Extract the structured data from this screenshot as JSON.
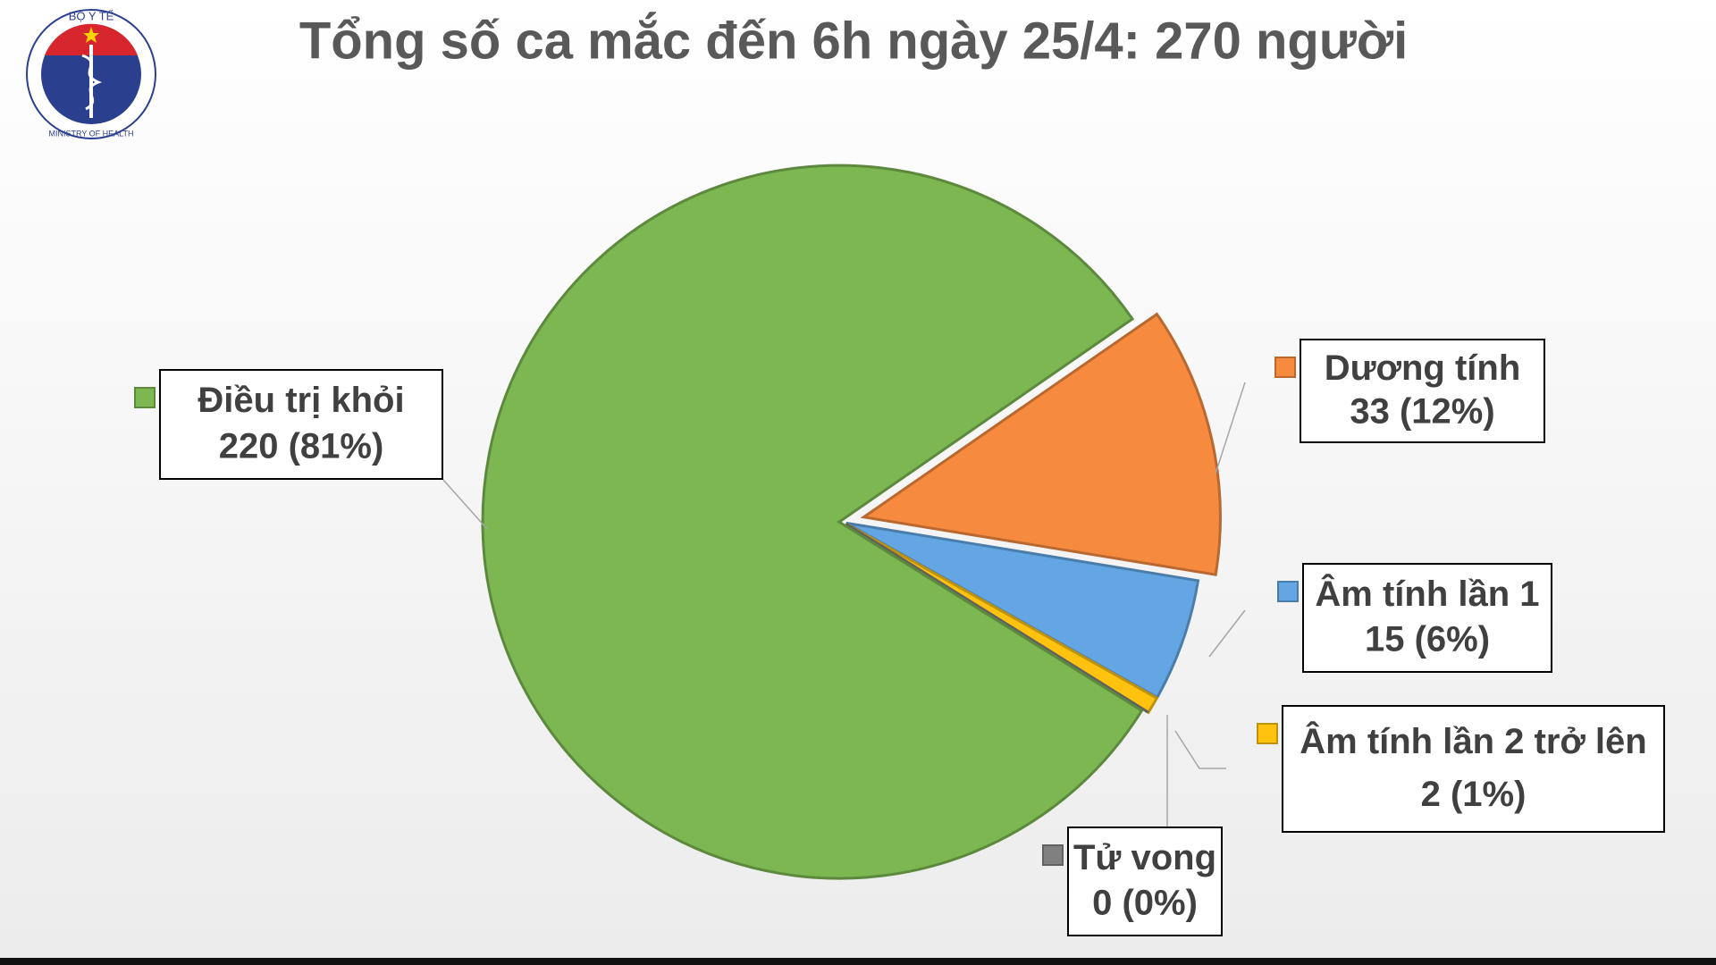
{
  "logo": {
    "top": "BỘ Y TẾ",
    "bottom": "MINISTRY OF HEALTH"
  },
  "chart_data": {
    "type": "pie",
    "title": "Tổng số ca mắc đến 6h ngày 25/4: 270 người",
    "categories": [
      "Dương tính",
      "Âm tính lần 1",
      "Âm tính lần 2 trở lên",
      "Tử vong",
      "Điều trị khỏi"
    ],
    "values": [
      33,
      15,
      2,
      0,
      220
    ],
    "value_labels": [
      "33 (12%)",
      "15 (6%)",
      "2 (1%)",
      "0 (0%)",
      "220 (81%)"
    ],
    "colors": [
      "#f68b3f",
      "#63a6e3",
      "#ffc20e",
      "#808080",
      "#7cb752"
    ]
  }
}
